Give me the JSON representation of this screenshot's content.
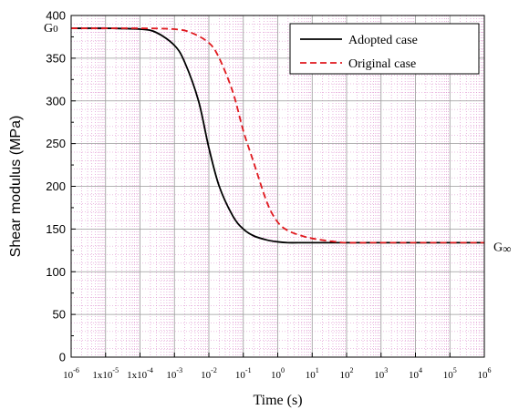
{
  "chart_data": {
    "type": "line",
    "title": "",
    "xlabel": "Time (s)",
    "ylabel": "Shear modulus (MPa)",
    "x_scale": "log",
    "xlim": [
      1e-06,
      1000000.0
    ],
    "ylim": [
      0,
      400
    ],
    "x_ticks": [
      1e-06,
      1e-05,
      0.0001,
      0.001,
      0.01,
      0.1,
      1.0,
      10.0,
      100.0,
      1000.0,
      10000.0,
      100000.0,
      1000000.0
    ],
    "x_tick_labels": [
      {
        "base": "10",
        "exp": "-6"
      },
      {
        "base": "1x10",
        "exp": "-5"
      },
      {
        "base": "1x10",
        "exp": "-4"
      },
      {
        "base": "10",
        "exp": "-3"
      },
      {
        "base": "10",
        "exp": "-2"
      },
      {
        "base": "10",
        "exp": "-1"
      },
      {
        "base": "10",
        "exp": "0"
      },
      {
        "base": "10",
        "exp": "1"
      },
      {
        "base": "10",
        "exp": "2"
      },
      {
        "base": "10",
        "exp": "3"
      },
      {
        "base": "10",
        "exp": "4"
      },
      {
        "base": "10",
        "exp": "5"
      },
      {
        "base": "10",
        "exp": "6"
      }
    ],
    "y_ticks": [
      0,
      50,
      100,
      150,
      200,
      250,
      300,
      350,
      400
    ],
    "grid": true,
    "legend_position": "top-right",
    "series": [
      {
        "name": "Adopted case",
        "color": "#000000",
        "style": "solid",
        "x": [
          1e-06,
          1e-05,
          0.0001,
          0.0003,
          0.001,
          0.002,
          0.005,
          0.01,
          0.02,
          0.05,
          0.1,
          0.2,
          0.5,
          1.0,
          2.0,
          5.0,
          10.0,
          100.0,
          1000.0,
          10000.0,
          100000.0,
          1000000.0
        ],
        "y": [
          385,
          385,
          384,
          380,
          365,
          345,
          300,
          245,
          200,
          165,
          150,
          142,
          137,
          135,
          134,
          134,
          134,
          134,
          134,
          134,
          134,
          134
        ]
      },
      {
        "name": "Original case",
        "color": "#e0191e",
        "style": "dashed",
        "x": [
          1e-06,
          1e-05,
          0.0001,
          0.001,
          0.003,
          0.01,
          0.02,
          0.05,
          0.1,
          0.2,
          0.5,
          1.0,
          2.0,
          5.0,
          10.0,
          20.0,
          50.0,
          100.0,
          1000.0,
          10000.0,
          100000.0,
          1000000.0
        ],
        "y": [
          385,
          385,
          385,
          384,
          380,
          368,
          350,
          310,
          265,
          228,
          180,
          158,
          148,
          142,
          139,
          137,
          135,
          134,
          134,
          134,
          134,
          134
        ]
      }
    ],
    "annotations": [
      {
        "text": "G",
        "sub": "0",
        "x": 1e-06,
        "y": 385,
        "side": "left"
      },
      {
        "text": "G",
        "sub": "∞",
        "x": 1000000.0,
        "y": 134,
        "side": "right"
      }
    ]
  }
}
